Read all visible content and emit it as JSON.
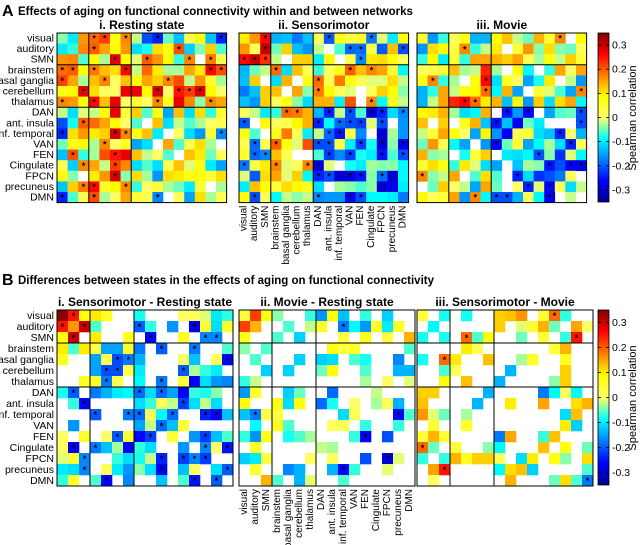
{
  "figure": {
    "panel_a_letter": "A",
    "panel_a_title": "Effects of aging on functional connectivity within and between networks",
    "panel_b_letter": "B",
    "panel_b_title": "Differences between states in the effects of aging on functional connectivity"
  },
  "chart_data": {
    "type": "heatmap",
    "networks": [
      "visual",
      "auditory",
      "SMN",
      "brainstem",
      "basal ganglia",
      "cerebellum",
      "thalamus",
      "DAN",
      "ant. insula",
      "inf. temporal",
      "VAN",
      "FEN",
      "Cingulate",
      "FPCN",
      "precuneus",
      "DMN"
    ],
    "colorbar": {
      "label": "Spearman correlation",
      "range": [
        -0.35,
        0.35
      ],
      "ticks": [
        "0.3",
        "0.2",
        "0.1",
        "0",
        "-0.1",
        "-0.2",
        "-0.3"
      ],
      "tick_values": [
        0.3,
        0.2,
        0.1,
        0,
        -0.1,
        -0.2,
        -0.3
      ]
    },
    "grid_separators_after_index": [
      2,
      6
    ],
    "significance_marker": "*",
    "panels": [
      {
        "group": "A",
        "title": "i. Resting state",
        "seed": 11,
        "pattern": "rest",
        "show_row_labels": true,
        "show_col_labels": false
      },
      {
        "group": "A",
        "title": "ii. Sensorimotor",
        "seed": 23,
        "pattern": "sm",
        "show_row_labels": false,
        "show_col_labels": true
      },
      {
        "group": "A",
        "title": "iii. Movie",
        "seed": 37,
        "pattern": "movie",
        "show_row_labels": false,
        "show_col_labels": false
      },
      {
        "group": "B",
        "title": "i. Sensorimotor - Resting state",
        "seed": 41,
        "pattern": "diff1",
        "show_row_labels": true,
        "show_col_labels": false
      },
      {
        "group": "B",
        "title": "ii. Movie - Resting state",
        "seed": 53,
        "pattern": "diff2",
        "show_row_labels": false,
        "show_col_labels": true
      },
      {
        "group": "B",
        "title": "iii. Sensorimotor - Movie",
        "seed": 67,
        "pattern": "diff3",
        "show_row_labels": false,
        "show_col_labels": false
      }
    ]
  }
}
